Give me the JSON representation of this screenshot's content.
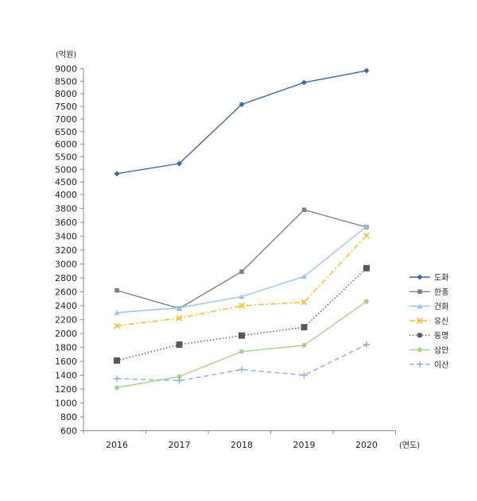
{
  "chart_data": {
    "type": "line",
    "y_unit_label": "(억원)",
    "x_unit_label": "(연도)",
    "categories": [
      "2016",
      "2017",
      "2018",
      "2019",
      "2020"
    ],
    "y_ticks_upper": [
      4000,
      4500,
      5000,
      5500,
      6000,
      6500,
      7000,
      7500,
      8000,
      8500,
      9000
    ],
    "y_ticks_lower": [
      600,
      800,
      1000,
      1200,
      1400,
      1600,
      1800,
      2000,
      2200,
      2400,
      2600,
      2800,
      3000,
      3200,
      3400,
      3600,
      3800,
      4000
    ],
    "y_axis_break": "broken scale: 600–4000 in steps of 200, 4000–9000 in steps of 500",
    "ylim": [
      600,
      9000
    ],
    "grid": false,
    "legend_position": "right",
    "series": [
      {
        "name": "도화",
        "values": [
          4830,
          5230,
          7580,
          8450,
          8920
        ],
        "color": "#3e66a8",
        "dash": "solid",
        "marker": "diamond"
      },
      {
        "name": "한종",
        "values": [
          2620,
          2360,
          2890,
          3780,
          3530
        ],
        "color": "#7f7f7f",
        "dash": "solid",
        "marker": "square"
      },
      {
        "name": "건화",
        "values": [
          2300,
          2370,
          2530,
          2820,
          3540
        ],
        "color": "#9dc3e6",
        "dash": "solid",
        "marker": "triangle"
      },
      {
        "name": "유신",
        "values": [
          2110,
          2220,
          2400,
          2450,
          3410
        ],
        "color": "#f2b727",
        "dash": "dashdot",
        "marker": "x"
      },
      {
        "name": "동명",
        "values": [
          1610,
          1840,
          1970,
          2090,
          2940
        ],
        "color": "#595959",
        "dash": "dotted",
        "marker": "bigsquare"
      },
      {
        "name": "삼안",
        "values": [
          1220,
          1380,
          1740,
          1830,
          2460
        ],
        "color": "#a9d18e",
        "dash": "solid",
        "marker": "circle"
      },
      {
        "name": "이산",
        "values": [
          1350,
          1320,
          1480,
          1400,
          1840
        ],
        "color": "#8faadc",
        "dash": "dashed",
        "marker": "plus"
      }
    ]
  }
}
